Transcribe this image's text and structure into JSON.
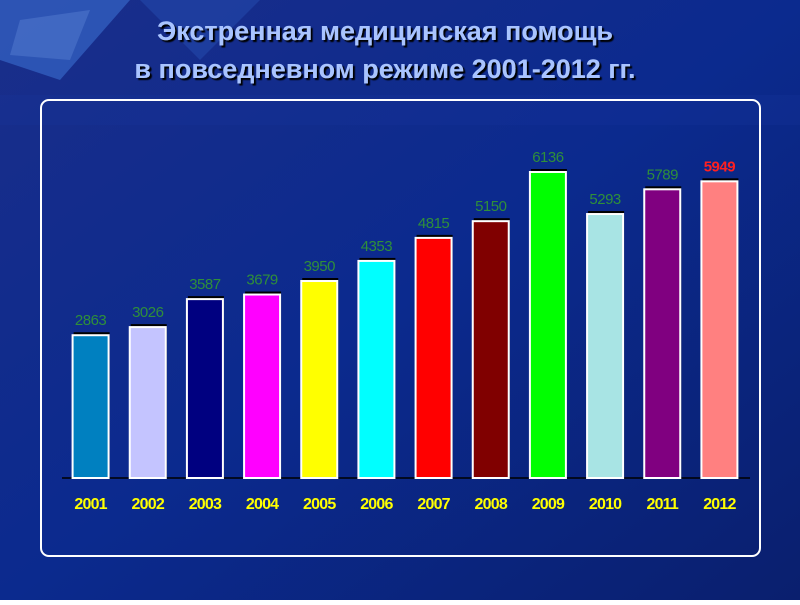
{
  "chart_data": {
    "type": "bar",
    "title": [
      "Экстренная медицинская помощь",
      "в повседневном режиме 2001-2012 гг."
    ],
    "categories": [
      "2001",
      "2002",
      "2003",
      "2004",
      "2005",
      "2006",
      "2007",
      "2008",
      "2009",
      "2010",
      "2011",
      "2012"
    ],
    "values": [
      2863,
      3026,
      3587,
      3679,
      3950,
      4353,
      4815,
      5150,
      6136,
      5293,
      5789,
      5949
    ],
    "colors": [
      "#0080c0",
      "#c4c4ff",
      "#000080",
      "#ff00ff",
      "#ffff00",
      "#00ffff",
      "#ff0000",
      "#800000",
      "#00ff00",
      "#a8e4e4",
      "#800080",
      "#ff8080"
    ],
    "value_label_colors": [
      "#2f8f3a",
      "#2f8f3a",
      "#2f8f3a",
      "#2f8f3a",
      "#2f8f3a",
      "#2f8f3a",
      "#2f8f3a",
      "#2f8f3a",
      "#2f8f3a",
      "#2f8f3a",
      "#2f8f3a",
      "#ff2020"
    ]
  }
}
